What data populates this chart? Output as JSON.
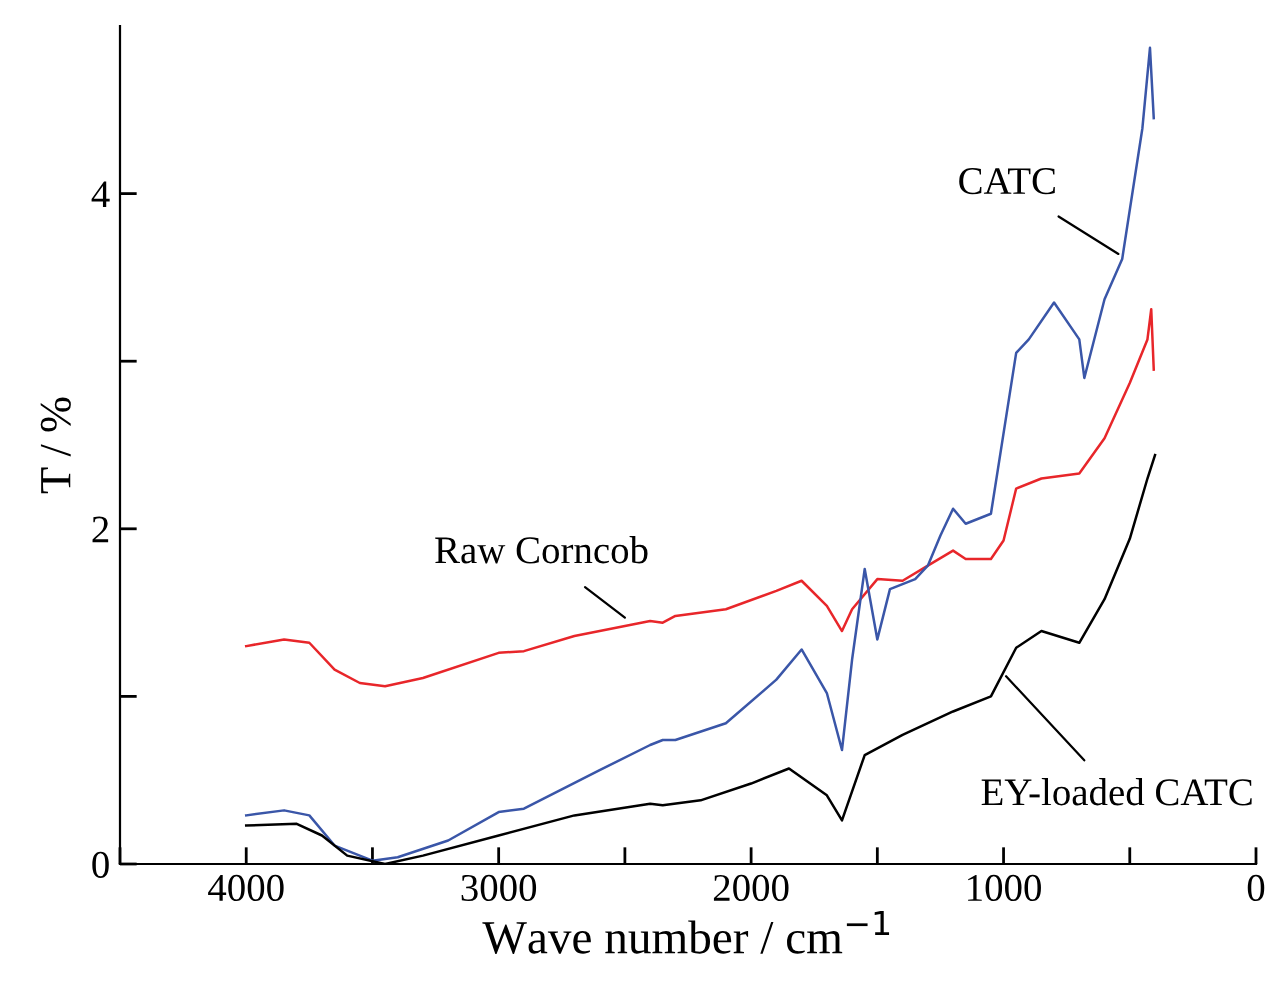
{
  "chart_data": {
    "type": "line",
    "xlabel": "Wave number / cm$^{−1}$",
    "ylabel": "T / %",
    "xlim": [
      4500,
      0
    ],
    "ylim": [
      0,
      5
    ],
    "xticks": [
      {
        "value": 4500,
        "label": null
      },
      4000,
      {
        "value": 3500,
        "label": null
      },
      3000,
      {
        "value": 2500,
        "label": null
      },
      2000,
      {
        "value": 1500,
        "label": null
      },
      1000,
      {
        "value": 500,
        "label": null
      },
      0
    ],
    "yticks": [
      0,
      {
        "value": 1,
        "label": null
      },
      2,
      {
        "value": 3,
        "label": null
      },
      4
    ],
    "grid": false,
    "legend": false,
    "marker": "none",
    "line_style": "solid",
    "series": [
      {
        "color": "#e8262a",
        "x": [
          4000,
          3850,
          3750,
          3650,
          3550,
          3450,
          3300,
          3000,
          2900,
          2700,
          2400,
          2350,
          2300,
          2100,
          1900,
          1800,
          1700,
          1640,
          1600,
          1500,
          1400,
          1300,
          1200,
          1150,
          1050,
          1000,
          950,
          850,
          700,
          600,
          500,
          430,
          415,
          405
        ],
        "values": [
          1.3,
          1.34,
          1.32,
          1.16,
          1.08,
          1.06,
          1.11,
          1.26,
          1.27,
          1.36,
          1.45,
          1.44,
          1.48,
          1.52,
          1.63,
          1.69,
          1.54,
          1.39,
          1.52,
          1.7,
          1.69,
          1.78,
          1.87,
          1.82,
          1.82,
          1.93,
          2.24,
          2.3,
          2.33,
          2.54,
          2.87,
          3.13,
          3.31,
          2.95
        ]
      },
      {
        "color": "#3a56a8",
        "x": [
          4000,
          3850,
          3750,
          3650,
          3500,
          3400,
          3200,
          3000,
          2900,
          2600,
          2400,
          2350,
          2300,
          2100,
          1900,
          1800,
          1700,
          1640,
          1600,
          1550,
          1500,
          1450,
          1350,
          1300,
          1250,
          1200,
          1150,
          1100,
          1050,
          950,
          900,
          800,
          700,
          680,
          600,
          530,
          450,
          420,
          405
        ],
        "values": [
          0.29,
          0.32,
          0.29,
          0.11,
          0.02,
          0.04,
          0.14,
          0.31,
          0.33,
          0.56,
          0.71,
          0.74,
          0.74,
          0.84,
          1.1,
          1.28,
          1.02,
          0.68,
          1.22,
          1.76,
          1.34,
          1.64,
          1.7,
          1.78,
          1.96,
          2.12,
          2.03,
          2.06,
          2.09,
          3.05,
          3.13,
          3.35,
          3.13,
          2.9,
          3.37,
          3.61,
          4.39,
          4.87,
          4.45
        ]
      },
      {
        "color": "#000000",
        "x": [
          4000,
          3800,
          3700,
          3600,
          3450,
          3300,
          3000,
          2700,
          2400,
          2350,
          2200,
          2000,
          1850,
          1700,
          1640,
          1550,
          1400,
          1200,
          1050,
          950,
          850,
          700,
          600,
          500,
          430,
          400
        ],
        "values": [
          0.23,
          0.24,
          0.17,
          0.05,
          0.0,
          0.05,
          0.17,
          0.29,
          0.36,
          0.35,
          0.38,
          0.48,
          0.57,
          0.41,
          0.26,
          0.65,
          0.77,
          0.91,
          1.0,
          1.29,
          1.39,
          1.32,
          1.58,
          1.94,
          2.3,
          2.44
        ]
      }
    ],
    "annotations": [
      {
        "text": "CATC",
        "x": 545,
        "y": 3.64
      },
      {
        "text": "Raw Corncob",
        "x": 2500,
        "y": 1.47
      },
      {
        "text": "EY-loaded CATC",
        "x": 990,
        "y": 1.12
      }
    ]
  }
}
